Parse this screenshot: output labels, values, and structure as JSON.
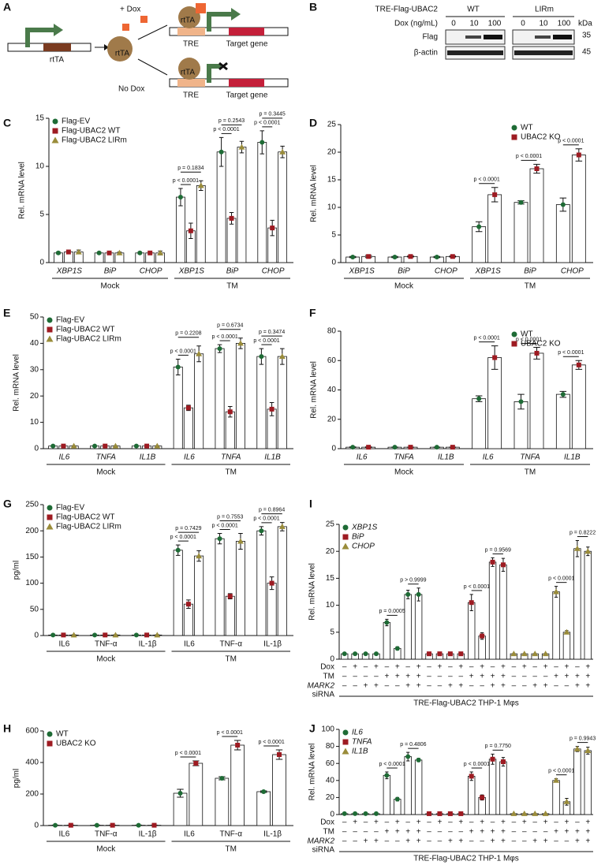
{
  "panel_labels": [
    "A",
    "B",
    "C",
    "D",
    "E",
    "F",
    "G",
    "H",
    "I",
    "J"
  ],
  "diagram": {
    "plus_dox": "+ Dox",
    "no_dox": "No Dox",
    "rtta": "rtTA",
    "tre": "TRE",
    "target": "Target gene"
  },
  "blot": {
    "construct": "TRE-Flag-UBAC2",
    "lane_groups": [
      "WT",
      "LIRm"
    ],
    "dose_label": "Dox (ng/mL)",
    "doses": [
      0,
      10,
      100
    ],
    "rows": [
      "Flag",
      "β-actin"
    ],
    "kda": "kDa",
    "markers": [
      35,
      45
    ]
  },
  "chart_data": [
    {
      "type": "bar",
      "ylabel": "Rel. mRNA level",
      "ylim": [
        0,
        15
      ],
      "yticks": [
        0,
        5,
        10,
        15
      ],
      "legend": "upper left",
      "italic": true,
      "categories": [
        "XBP1S",
        "BiP",
        "CHOP",
        "XBP1S",
        "BiP",
        "CHOP"
      ],
      "groups": [
        "Mock",
        "TM"
      ],
      "series": [
        {
          "name": "Flag-EV",
          "color": "#1e6b35",
          "values": [
            1,
            1,
            1,
            6.8,
            11.5,
            12.5
          ],
          "errors": [
            0.1,
            0.1,
            0.1,
            0.9,
            1.5,
            1.2
          ]
        },
        {
          "name": "Flag-UBAC2 WT",
          "color": "#9e1b22",
          "values": [
            1.1,
            1,
            1,
            3.3,
            4.6,
            3.6
          ],
          "errors": [
            0.2,
            0.1,
            0.1,
            0.8,
            0.6,
            0.8
          ]
        },
        {
          "name": "Flag-UBAC2 LIRm",
          "color": "#9a8c3a",
          "values": [
            1.1,
            1,
            1,
            8.0,
            12.0,
            11.5
          ],
          "errors": [
            0.2,
            0.1,
            0.2,
            0.5,
            0.6,
            0.6
          ]
        }
      ],
      "pvalues": [
        null,
        null,
        null,
        [
          "p < 0.0001",
          "p = 0.1834"
        ],
        [
          "p < 0.0001",
          "p = 0.2543"
        ],
        [
          "p < 0.0001",
          "p = 0.3445"
        ]
      ]
    },
    {
      "type": "bar",
      "ylabel": "Rel. mRNA level",
      "ylim": [
        0,
        25
      ],
      "yticks": [
        0,
        5,
        10,
        15,
        20,
        25
      ],
      "legend": "upper right",
      "italic": true,
      "categories": [
        "XBP1S",
        "BiP",
        "CHOP",
        "XBP1S",
        "BiP",
        "CHOP"
      ],
      "groups": [
        "Mock",
        "TM"
      ],
      "series": [
        {
          "name": "WT",
          "color": "#1e6b35",
          "values": [
            1,
            1,
            1,
            6.5,
            10.9,
            10.5
          ],
          "errors": [
            0.1,
            0.1,
            0.1,
            0.9,
            0.3,
            1.2
          ]
        },
        {
          "name": "UBAC2 KO",
          "color": "#9e1b22",
          "values": [
            1.1,
            1.1,
            1.1,
            12.3,
            17,
            19.5
          ],
          "errors": [
            0.2,
            0.1,
            0.1,
            1.3,
            0.8,
            1.1
          ]
        }
      ],
      "pvalues": [
        null,
        null,
        null,
        "p < 0.0001",
        "p < 0.0001",
        "p < 0.0001"
      ]
    },
    {
      "type": "bar",
      "ylabel": "Rel. mRNA level",
      "ylim": [
        0,
        50
      ],
      "yticks": [
        0,
        10,
        20,
        30,
        40,
        50
      ],
      "legend": "upper left",
      "italic": true,
      "categories": [
        "IL6",
        "TNFA",
        "IL1B",
        "IL6",
        "TNFA",
        "IL1B"
      ],
      "groups": [
        "Mock",
        "TM"
      ],
      "series": [
        {
          "name": "Flag-EV",
          "color": "#1e6b35",
          "values": [
            1,
            1,
            1,
            31,
            38,
            35
          ],
          "errors": [
            0.1,
            0.1,
            0.1,
            3,
            1.5,
            3
          ]
        },
        {
          "name": "Flag-UBAC2 WT",
          "color": "#9e1b22",
          "values": [
            1,
            1,
            1,
            15.5,
            14,
            15
          ],
          "errors": [
            0.1,
            0.1,
            0.1,
            1,
            2,
            2.5
          ]
        },
        {
          "name": "Flag-UBAC2 LIRm",
          "color": "#9a8c3a",
          "values": [
            1,
            1,
            1,
            36,
            40,
            35
          ],
          "errors": [
            0.1,
            0.1,
            0.1,
            3,
            2,
            3
          ]
        }
      ],
      "pvalues": [
        null,
        null,
        null,
        [
          "p < 0.0001",
          "p = 0.2208"
        ],
        [
          "p < 0.0001",
          "p = 0.6734"
        ],
        [
          "p < 0.0001",
          "p = 0.3474"
        ]
      ]
    },
    {
      "type": "bar",
      "ylabel": "Rel. mRNA level",
      "ylim": [
        0,
        80
      ],
      "yticks": [
        0,
        20,
        40,
        60,
        80
      ],
      "legend": "upper right",
      "italic": true,
      "categories": [
        "IL6",
        "TNFA",
        "IL1B",
        "IL6",
        "TNFA",
        "IL1B"
      ],
      "groups": [
        "Mock",
        "TM"
      ],
      "series": [
        {
          "name": "WT",
          "color": "#1e6b35",
          "values": [
            1,
            1,
            1,
            34,
            32,
            37
          ],
          "errors": [
            0.2,
            0.1,
            0.1,
            2,
            5,
            2
          ]
        },
        {
          "name": "UBAC2 KO",
          "color": "#9e1b22",
          "values": [
            1,
            1,
            1,
            62,
            65,
            57
          ],
          "errors": [
            0.2,
            0.1,
            0.1,
            8,
            4,
            3
          ]
        }
      ],
      "pvalues": [
        null,
        null,
        null,
        "p < 0.0001",
        "p < 0.0001",
        "p < 0.0001"
      ]
    },
    {
      "type": "bar",
      "ylabel": "pg/ml",
      "ylim": [
        0,
        250
      ],
      "yticks": [
        0,
        50,
        100,
        150,
        200,
        250
      ],
      "legend": "upper left",
      "italic": false,
      "categories": [
        "IL6",
        "TNF-α",
        "IL-1β",
        "IL6",
        "TNF-α",
        "IL-1β"
      ],
      "groups": [
        "Mock",
        "TM"
      ],
      "series": [
        {
          "name": "Flag-EV",
          "color": "#1e6b35",
          "values": [
            1,
            1,
            1,
            163,
            185,
            200
          ],
          "errors": [
            0.5,
            0.5,
            0.5,
            10,
            10,
            8
          ]
        },
        {
          "name": "Flag-UBAC2 WT",
          "color": "#9e1b22",
          "values": [
            1,
            1,
            1,
            60,
            75,
            100
          ],
          "errors": [
            0.5,
            0.5,
            0.5,
            8,
            5,
            12
          ]
        },
        {
          "name": "Flag-UBAC2 LIRm",
          "color": "#9a8c3a",
          "values": [
            1,
            1,
            1,
            152,
            180,
            208
          ],
          "errors": [
            0.5,
            0.5,
            0.5,
            10,
            15,
            8
          ]
        }
      ],
      "pvalues": [
        null,
        null,
        null,
        [
          "p < 0.0001",
          "p = 0.7429"
        ],
        [
          "p < 0.0001",
          "p = 0.7553"
        ],
        [
          "p < 0.0001",
          "p = 0.8964"
        ]
      ]
    },
    {
      "type": "bar",
      "ylabel": "pg/ml",
      "ylim": [
        0,
        600
      ],
      "yticks": [
        0,
        200,
        400,
        600
      ],
      "legend": "upper left",
      "italic": false,
      "categories": [
        "IL6",
        "TNF-α",
        "IL-1β",
        "IL6",
        "TNF-α",
        "IL-1β"
      ],
      "groups": [
        "Mock",
        "TM"
      ],
      "series": [
        {
          "name": "WT",
          "color": "#1e6b35",
          "values": [
            2,
            2,
            2,
            205,
            300,
            215
          ],
          "errors": [
            1,
            1,
            1,
            25,
            10,
            5
          ]
        },
        {
          "name": "UBAC2 KO",
          "color": "#9e1b22",
          "values": [
            2,
            2,
            2,
            395,
            510,
            450
          ],
          "errors": [
            1,
            1,
            1,
            15,
            30,
            30
          ]
        }
      ],
      "pvalues": [
        null,
        null,
        null,
        "p < 0.0001",
        "p < 0.0001",
        "p < 0.0001"
      ]
    },
    {
      "type": "bar",
      "ylabel": "Rel. mRNA level",
      "ylim": [
        0,
        25
      ],
      "yticks": [
        0,
        5,
        10,
        15,
        20,
        25
      ],
      "legend": "upper left",
      "italic": true,
      "series": [
        {
          "name": "XBP1S",
          "color": "#1e6b35",
          "values": [
            1,
            1,
            1,
            1,
            6.8,
            2,
            12,
            12
          ],
          "errors": [
            0.05,
            0.05,
            0.05,
            0.05,
            0.6,
            0.3,
            0.8,
            1.2
          ],
          "pvalues": [
            "p = 0.0005",
            "p > 0.9999"
          ]
        },
        {
          "name": "BiP",
          "color": "#9e1b22",
          "values": [
            1,
            1,
            1,
            1,
            10.5,
            4.3,
            18,
            17.5
          ],
          "errors": [
            0.05,
            0.05,
            0.05,
            0.05,
            1.5,
            0.6,
            0.8,
            1.2
          ],
          "pvalues": [
            "p < 0.0001",
            "p = 0.9569"
          ]
        },
        {
          "name": "CHOP",
          "color": "#9a8c3a",
          "values": [
            1,
            1,
            1,
            1,
            12.5,
            5,
            20.5,
            20
          ],
          "errors": [
            0.05,
            0.05,
            0.05,
            0.05,
            1.0,
            0.3,
            1.5,
            0.8
          ],
          "pvalues": [
            "p < 0.0001",
            "p = 0.8222"
          ]
        }
      ],
      "conditions": [
        {
          "label": "Dox",
          "signs": [
            "–",
            "+",
            "–",
            "+",
            "–",
            "+",
            "–",
            "+"
          ]
        },
        {
          "label": "TM",
          "signs": [
            "–",
            "–",
            "–",
            "–",
            "+",
            "+",
            "+",
            "+"
          ]
        },
        {
          "label": "MARK2",
          "sublabel": "siRNA",
          "signs": [
            "–",
            "–",
            "+",
            "+",
            "–",
            "–",
            "+",
            "+"
          ]
        }
      ],
      "footer": "TRE-Flag-UBAC2 THP-1 Mφs"
    },
    {
      "type": "bar",
      "ylabel": "Rel. mRNA level",
      "ylim": [
        0,
        100
      ],
      "yticks": [
        0,
        20,
        40,
        60,
        80,
        100
      ],
      "legend": "upper left",
      "italic": true,
      "series": [
        {
          "name": "IL6",
          "color": "#1e6b35",
          "values": [
            1,
            1,
            1,
            1,
            46,
            18,
            68,
            64
          ],
          "errors": [
            0.1,
            0.1,
            0.1,
            0.1,
            4,
            2,
            5,
            2
          ],
          "pvalues": [
            "p < 0.0001",
            "p = 0.4806"
          ]
        },
        {
          "name": "TNFA",
          "color": "#9e1b22",
          "values": [
            1,
            1,
            1,
            1,
            45,
            20,
            65,
            62
          ],
          "errors": [
            0.1,
            0.1,
            0.1,
            0.1,
            5,
            3,
            6,
            5
          ],
          "pvalues": [
            "p < 0.0001",
            "p = 0.7750"
          ]
        },
        {
          "name": "IL1B",
          "color": "#9a8c3a",
          "values": [
            1,
            1,
            1,
            1,
            40,
            15,
            77,
            75
          ],
          "errors": [
            0.1,
            0.1,
            0.1,
            0.1,
            2,
            4,
            3,
            4
          ],
          "pvalues": [
            "p < 0.0001",
            "p = 0.9943"
          ]
        }
      ],
      "conditions": [
        {
          "label": "Dox",
          "signs": [
            "–",
            "+",
            "–",
            "+",
            "–",
            "+",
            "–",
            "+"
          ]
        },
        {
          "label": "TM",
          "signs": [
            "–",
            "–",
            "–",
            "–",
            "+",
            "+",
            "+",
            "+"
          ]
        },
        {
          "label": "MARK2",
          "sublabel": "siRNA",
          "signs": [
            "–",
            "–",
            "+",
            "+",
            "–",
            "–",
            "+",
            "+"
          ]
        }
      ],
      "footer": "TRE-Flag-UBAC2 THP-1 Mφs"
    }
  ]
}
